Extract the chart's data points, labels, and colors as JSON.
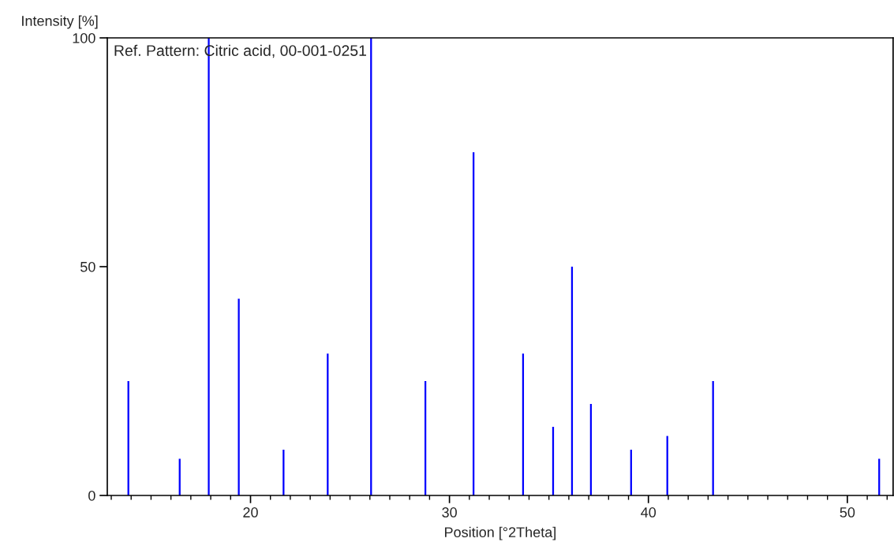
{
  "chart_data": {
    "type": "bar",
    "xlabel": "Position [°2Theta]",
    "ylabel": "Intensity [%]",
    "annotations": [
      "Ref. Pattern: Citric acid, 00-001-0251"
    ],
    "x": [
      13.86,
      16.44,
      17.9,
      19.41,
      21.66,
      23.88,
      26.06,
      28.79,
      31.21,
      33.7,
      35.21,
      36.16,
      37.11,
      39.13,
      40.95,
      43.25,
      51.6
    ],
    "values": [
      25,
      8,
      100,
      43,
      10,
      31,
      100,
      25,
      75,
      31,
      15,
      50,
      20,
      10,
      13,
      25,
      8
    ],
    "color": "#0000ff",
    "xlim": [
      12.8,
      52.3
    ],
    "ylim": [
      0,
      100
    ],
    "xticks": [
      {
        "value": 13,
        "label": null
      },
      {
        "value": 14,
        "label": null
      },
      {
        "value": 15,
        "label": null
      },
      {
        "value": 16,
        "label": null
      },
      {
        "value": 17,
        "label": null
      },
      {
        "value": 18,
        "label": null
      },
      {
        "value": 19,
        "label": null
      },
      20,
      {
        "value": 21,
        "label": null
      },
      {
        "value": 22,
        "label": null
      },
      {
        "value": 23,
        "label": null
      },
      {
        "value": 24,
        "label": null
      },
      {
        "value": 25,
        "label": null
      },
      {
        "value": 26,
        "label": null
      },
      {
        "value": 27,
        "label": null
      },
      {
        "value": 28,
        "label": null
      },
      {
        "value": 29,
        "label": null
      },
      30,
      {
        "value": 31,
        "label": null
      },
      {
        "value": 32,
        "label": null
      },
      {
        "value": 33,
        "label": null
      },
      {
        "value": 34,
        "label": null
      },
      {
        "value": 35,
        "label": null
      },
      {
        "value": 36,
        "label": null
      },
      {
        "value": 37,
        "label": null
      },
      {
        "value": 38,
        "label": null
      },
      {
        "value": 39,
        "label": null
      },
      40,
      {
        "value": 41,
        "label": null
      },
      {
        "value": 42,
        "label": null
      },
      {
        "value": 43,
        "label": null
      },
      {
        "value": 44,
        "label": null
      },
      {
        "value": 45,
        "label": null
      },
      {
        "value": 46,
        "label": null
      },
      {
        "value": 47,
        "label": null
      },
      {
        "value": 48,
        "label": null
      },
      {
        "value": 49,
        "label": null
      },
      50,
      {
        "value": 51,
        "label": null
      },
      {
        "value": 52,
        "label": null
      }
    ],
    "yticks": [
      0,
      50,
      100
    ],
    "grid": false,
    "legend": false
  }
}
